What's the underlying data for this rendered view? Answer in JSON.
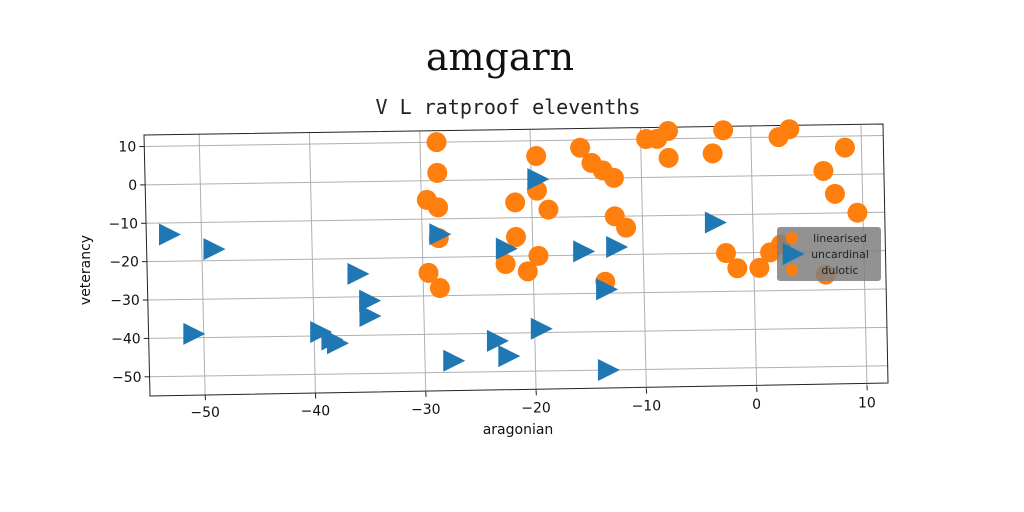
{
  "chart_data": {
    "type": "scatter",
    "title": "amgarn",
    "subtitle": "V L ratproof elevenths",
    "xlabel": "aragonian",
    "ylabel": "veterancy",
    "xlim": [
      -55,
      12
    ],
    "ylim": [
      -55,
      13
    ],
    "xticks": [
      -50,
      -40,
      -30,
      -20,
      -10,
      0,
      10
    ],
    "yticks": [
      -50,
      -40,
      -30,
      -20,
      -10,
      0,
      10
    ],
    "grid": true,
    "legend_position": "right",
    "series": [
      {
        "name": "linearised",
        "marker": "circle",
        "color": "#ff7f0e",
        "points": [
          [
            -28.5,
            10
          ],
          [
            -28.5,
            2
          ],
          [
            -29.5,
            -5
          ],
          [
            -28.5,
            -7
          ],
          [
            -28.5,
            -15
          ],
          [
            -29.5,
            -24
          ],
          [
            -28.5,
            -28
          ],
          [
            -19.5,
            6
          ],
          [
            -19.5,
            -3
          ],
          [
            -21.5,
            -6
          ],
          [
            -18.5,
            -8
          ],
          [
            -21.5,
            -15
          ],
          [
            -22.5,
            -22
          ],
          [
            -20.5,
            -24
          ],
          [
            -19.5,
            -20
          ],
          [
            -15.5,
            8
          ],
          [
            -14.5,
            4
          ],
          [
            -13.5,
            2
          ],
          [
            -12.5,
            0
          ],
          [
            -12.5,
            -10
          ],
          [
            -11.5,
            -13
          ],
          [
            -13.5,
            -27
          ],
          [
            -9.5,
            10
          ],
          [
            -8.5,
            10
          ],
          [
            -7.5,
            12
          ],
          [
            -7.5,
            5
          ],
          [
            -3.5,
            6
          ],
          [
            -2.5,
            12
          ],
          [
            -2.5,
            -20
          ],
          [
            -1.5,
            -24
          ],
          [
            0.5,
            -24
          ],
          [
            1.5,
            -20
          ],
          [
            2.5,
            -18
          ],
          [
            2.5,
            10
          ],
          [
            3.5,
            12
          ],
          [
            6.5,
            1
          ],
          [
            7.5,
            -5
          ],
          [
            8.5,
            7
          ],
          [
            9.5,
            -10
          ],
          [
            6.5,
            -26
          ]
        ]
      },
      {
        "name": "uncardinal",
        "marker": "triangle",
        "color": "#1f77b4",
        "points": [
          [
            -53,
            -13
          ],
          [
            -49,
            -17
          ],
          [
            -51,
            -39
          ],
          [
            -39.5,
            -39
          ],
          [
            -38.5,
            -41
          ],
          [
            -38,
            -42
          ],
          [
            -36,
            -24
          ],
          [
            -35,
            -31
          ],
          [
            -35,
            -35
          ],
          [
            -28.5,
            -14
          ],
          [
            -27.5,
            -47
          ],
          [
            -23.5,
            -42
          ],
          [
            -22.5,
            -46
          ],
          [
            -22.5,
            -18
          ],
          [
            -19.5,
            0
          ],
          [
            -19.5,
            -39
          ],
          [
            -15.5,
            -19
          ],
          [
            -13.5,
            -29
          ],
          [
            -12.5,
            -18
          ],
          [
            -13.5,
            -50
          ],
          [
            -3.5,
            -12
          ]
        ]
      },
      {
        "name": "dulotic",
        "marker": "circle-small",
        "color": "#ff7f0e",
        "points": []
      }
    ]
  }
}
